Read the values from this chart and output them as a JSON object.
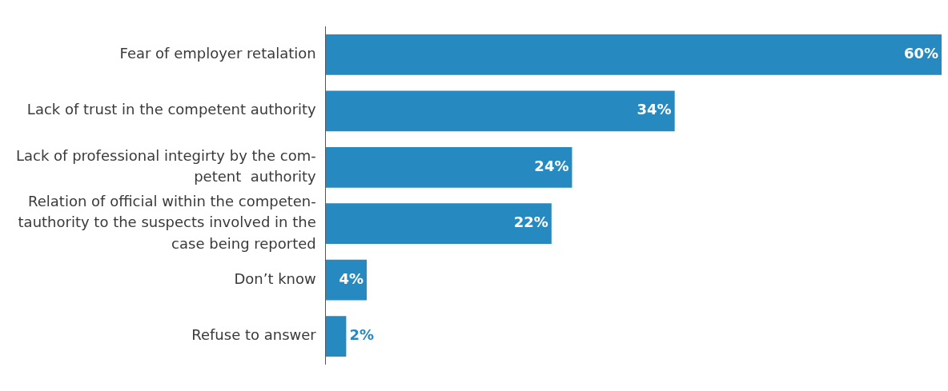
{
  "chart_data": {
    "type": "bar",
    "orientation": "horizontal",
    "categories": [
      "Fear of employer retalation",
      "Lack of trust in the competent authority",
      "Lack of professional integirty by the com-\npetent  authority",
      "Relation of official within the competen-\ntauthority to the suspects involved in the\ncase being reported",
      "Don’t know",
      "Refuse to answer"
    ],
    "values": [
      60,
      34,
      24,
      22,
      4,
      2
    ],
    "value_labels": [
      "60%",
      "34%",
      "24%",
      "22%",
      "4%",
      "2%"
    ],
    "color": "#2689bf",
    "legend": false
  }
}
